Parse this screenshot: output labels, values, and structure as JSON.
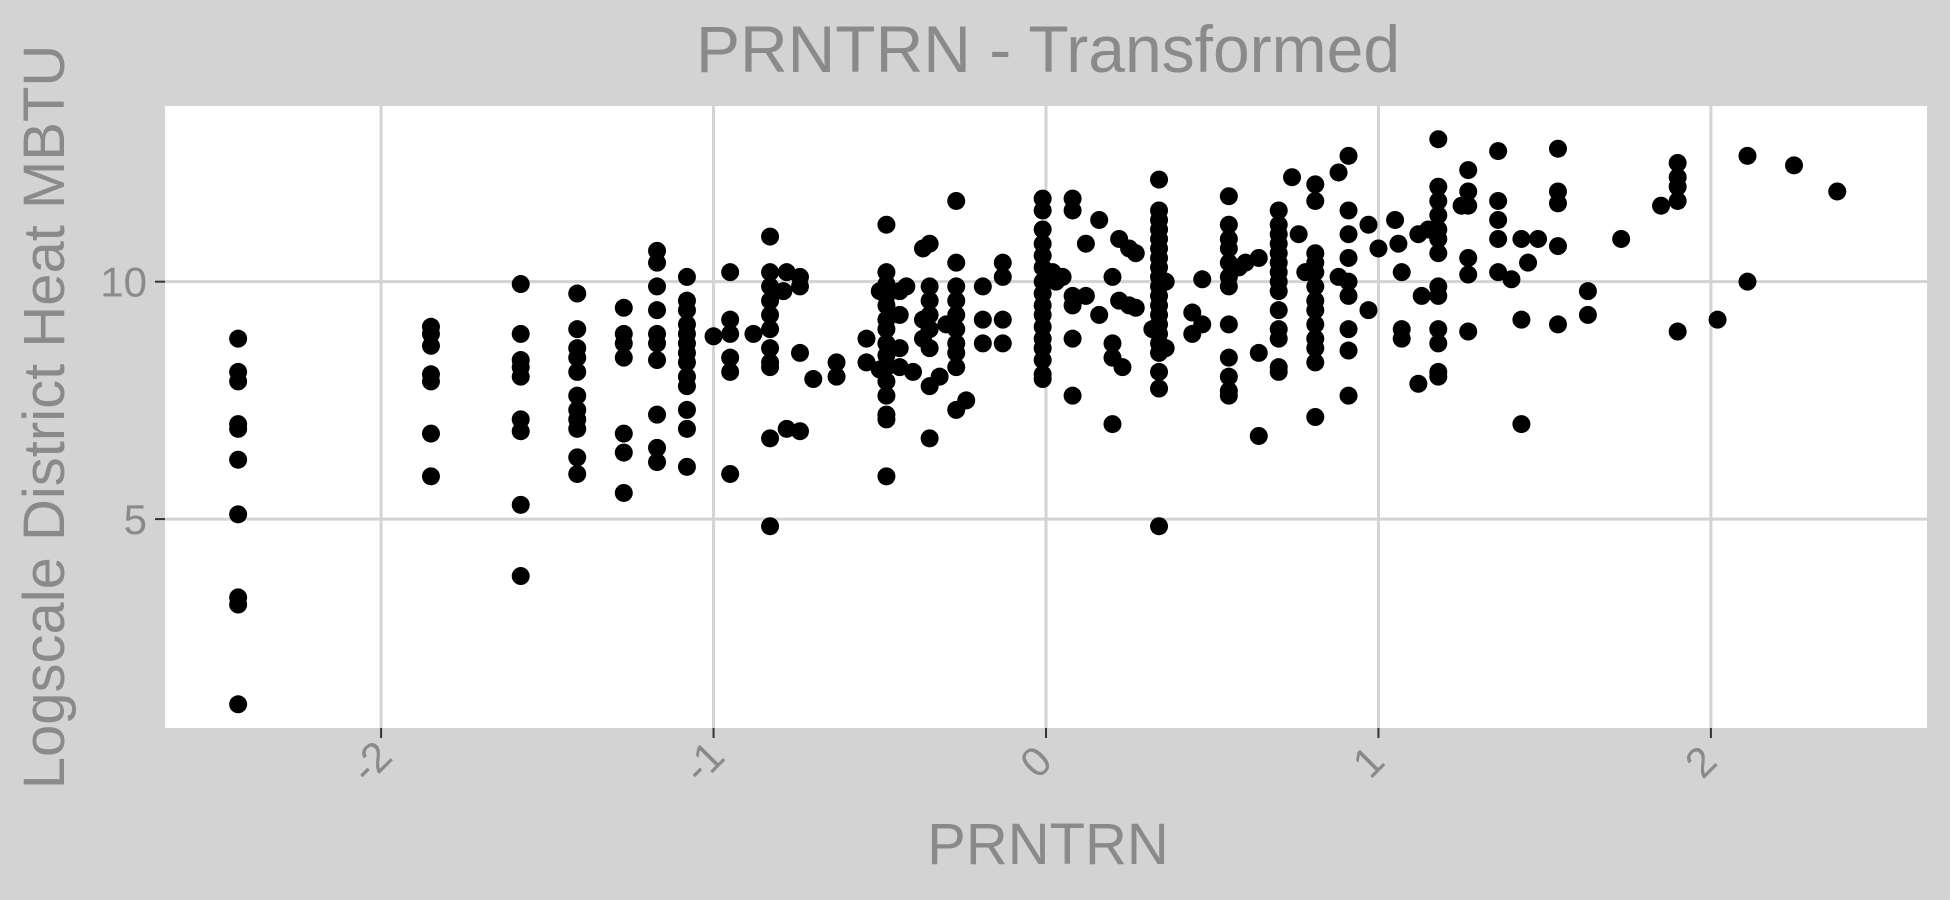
{
  "chart_data": {
    "type": "scatter",
    "title": "PRNTRN - Transformed",
    "xlabel": "PRNTRN",
    "ylabel": "Logscale District Heat MBTU",
    "xlim": [
      -2.65,
      2.65
    ],
    "ylim": [
      0.6,
      13.7
    ],
    "x_ticks": [
      -2,
      -1,
      0,
      1,
      2
    ],
    "x_tick_labels": [
      "-2",
      "-1",
      "0",
      "1",
      "2"
    ],
    "y_ticks": [
      5,
      10
    ],
    "y_tick_labels": [
      "5",
      "10"
    ],
    "grid": true,
    "legend": "none",
    "colors": {
      "background": "#d3d3d3",
      "panel": "#ffffff",
      "grid": "#d3d3d3",
      "points": "#000000",
      "text": "#8a8a8a"
    },
    "points": [
      [
        -2.43,
        8.8
      ],
      [
        -2.43,
        8.1
      ],
      [
        -2.43,
        7.9
      ],
      [
        -2.43,
        7.0
      ],
      [
        -2.43,
        6.9
      ],
      [
        -2.43,
        6.25
      ],
      [
        -2.43,
        5.1
      ],
      [
        -2.43,
        3.35
      ],
      [
        -2.43,
        3.2
      ],
      [
        -2.43,
        1.1
      ],
      [
        -1.85,
        9.05
      ],
      [
        -1.85,
        8.9
      ],
      [
        -1.85,
        8.65
      ],
      [
        -1.85,
        8.05
      ],
      [
        -1.85,
        7.9
      ],
      [
        -1.85,
        6.8
      ],
      [
        -1.85,
        5.9
      ],
      [
        -1.58,
        9.95
      ],
      [
        -1.58,
        8.9
      ],
      [
        -1.58,
        8.35
      ],
      [
        -1.58,
        8.2
      ],
      [
        -1.58,
        8.0
      ],
      [
        -1.58,
        7.1
      ],
      [
        -1.58,
        6.85
      ],
      [
        -1.58,
        5.3
      ],
      [
        -1.58,
        3.8
      ],
      [
        -1.41,
        9.75
      ],
      [
        -1.41,
        9.0
      ],
      [
        -1.41,
        8.6
      ],
      [
        -1.41,
        8.4
      ],
      [
        -1.41,
        8.1
      ],
      [
        -1.41,
        7.6
      ],
      [
        -1.41,
        7.3
      ],
      [
        -1.41,
        7.1
      ],
      [
        -1.41,
        6.9
      ],
      [
        -1.41,
        6.3
      ],
      [
        -1.41,
        5.95
      ],
      [
        -1.27,
        9.45
      ],
      [
        -1.27,
        8.9
      ],
      [
        -1.27,
        8.7
      ],
      [
        -1.27,
        8.4
      ],
      [
        -1.27,
        6.8
      ],
      [
        -1.27,
        6.4
      ],
      [
        -1.27,
        5.55
      ],
      [
        -1.17,
        10.65
      ],
      [
        -1.17,
        10.4
      ],
      [
        -1.17,
        9.9
      ],
      [
        -1.17,
        9.4
      ],
      [
        -1.17,
        8.9
      ],
      [
        -1.17,
        8.7
      ],
      [
        -1.17,
        8.35
      ],
      [
        -1.17,
        7.2
      ],
      [
        -1.17,
        6.5
      ],
      [
        -1.17,
        6.2
      ],
      [
        -1.08,
        10.1
      ],
      [
        -1.08,
        9.6
      ],
      [
        -1.08,
        9.4
      ],
      [
        -1.08,
        9.1
      ],
      [
        -1.08,
        8.9
      ],
      [
        -1.08,
        8.7
      ],
      [
        -1.08,
        8.5
      ],
      [
        -1.08,
        8.3
      ],
      [
        -1.08,
        8.0
      ],
      [
        -1.08,
        7.8
      ],
      [
        -1.08,
        7.3
      ],
      [
        -1.08,
        6.9
      ],
      [
        -1.08,
        6.1
      ],
      [
        -1.0,
        8.85
      ],
      [
        -0.95,
        10.2
      ],
      [
        -0.95,
        9.2
      ],
      [
        -0.95,
        8.9
      ],
      [
        -0.95,
        8.4
      ],
      [
        -0.95,
        8.1
      ],
      [
        -0.95,
        5.95
      ],
      [
        -0.88,
        8.9
      ],
      [
        -0.83,
        10.95
      ],
      [
        -0.83,
        10.2
      ],
      [
        -0.83,
        9.9
      ],
      [
        -0.83,
        9.6
      ],
      [
        -0.83,
        9.3
      ],
      [
        -0.83,
        9.0
      ],
      [
        -0.83,
        8.6
      ],
      [
        -0.83,
        8.3
      ],
      [
        -0.83,
        8.2
      ],
      [
        -0.83,
        6.7
      ],
      [
        -0.83,
        4.85
      ],
      [
        -0.79,
        9.8
      ],
      [
        -0.78,
        10.2
      ],
      [
        -0.78,
        6.9
      ],
      [
        -0.74,
        10.1
      ],
      [
        -0.74,
        9.9
      ],
      [
        -0.74,
        8.5
      ],
      [
        -0.74,
        6.85
      ],
      [
        -0.7,
        7.95
      ],
      [
        -0.63,
        8.3
      ],
      [
        -0.63,
        8.0
      ],
      [
        -0.54,
        8.8
      ],
      [
        -0.54,
        8.3
      ],
      [
        -0.5,
        9.8
      ],
      [
        -0.5,
        8.15
      ],
      [
        -0.48,
        11.2
      ],
      [
        -0.48,
        10.2
      ],
      [
        -0.48,
        9.95
      ],
      [
        -0.48,
        9.7
      ],
      [
        -0.48,
        9.5
      ],
      [
        -0.48,
        9.2
      ],
      [
        -0.48,
        9.0
      ],
      [
        -0.48,
        8.7
      ],
      [
        -0.48,
        8.45
      ],
      [
        -0.48,
        8.2
      ],
      [
        -0.48,
        7.9
      ],
      [
        -0.48,
        7.6
      ],
      [
        -0.48,
        7.2
      ],
      [
        -0.48,
        7.1
      ],
      [
        -0.48,
        5.9
      ],
      [
        -0.44,
        9.8
      ],
      [
        -0.44,
        9.3
      ],
      [
        -0.44,
        8.6
      ],
      [
        -0.44,
        8.2
      ],
      [
        -0.42,
        9.9
      ],
      [
        -0.4,
        8.1
      ],
      [
        -0.37,
        10.7
      ],
      [
        -0.37,
        9.2
      ],
      [
        -0.37,
        8.8
      ],
      [
        -0.35,
        10.8
      ],
      [
        -0.35,
        9.9
      ],
      [
        -0.35,
        9.6
      ],
      [
        -0.35,
        9.3
      ],
      [
        -0.35,
        9.0
      ],
      [
        -0.35,
        8.6
      ],
      [
        -0.35,
        7.8
      ],
      [
        -0.35,
        6.7
      ],
      [
        -0.32,
        8.0
      ],
      [
        -0.3,
        9.1
      ],
      [
        -0.27,
        11.7
      ],
      [
        -0.27,
        10.4
      ],
      [
        -0.27,
        9.9
      ],
      [
        -0.27,
        9.6
      ],
      [
        -0.27,
        9.3
      ],
      [
        -0.27,
        9.0
      ],
      [
        -0.27,
        8.7
      ],
      [
        -0.27,
        8.5
      ],
      [
        -0.27,
        8.2
      ],
      [
        -0.27,
        7.3
      ],
      [
        -0.24,
        7.5
      ],
      [
        -0.19,
        9.9
      ],
      [
        -0.19,
        9.2
      ],
      [
        -0.19,
        8.7
      ],
      [
        -0.13,
        10.4
      ],
      [
        -0.13,
        10.1
      ],
      [
        -0.13,
        9.2
      ],
      [
        -0.13,
        8.7
      ],
      [
        -0.01,
        11.75
      ],
      [
        -0.01,
        11.5
      ],
      [
        -0.01,
        11.1
      ],
      [
        -0.01,
        10.8
      ],
      [
        -0.01,
        10.55
      ],
      [
        -0.01,
        10.3
      ],
      [
        -0.01,
        10.0
      ],
      [
        -0.01,
        9.75
      ],
      [
        -0.01,
        9.5
      ],
      [
        -0.01,
        9.3
      ],
      [
        -0.01,
        9.05
      ],
      [
        -0.01,
        8.8
      ],
      [
        -0.01,
        8.6
      ],
      [
        -0.01,
        8.35
      ],
      [
        -0.01,
        8.05
      ],
      [
        -0.01,
        7.95
      ],
      [
        0.02,
        10.2
      ],
      [
        0.03,
        10.0
      ],
      [
        0.05,
        10.1
      ],
      [
        0.08,
        9.7
      ],
      [
        0.08,
        9.5
      ],
      [
        0.08,
        8.8
      ],
      [
        0.08,
        7.6
      ],
      [
        0.08,
        11.75
      ],
      [
        0.08,
        11.5
      ],
      [
        0.12,
        9.7
      ],
      [
        0.12,
        10.8
      ],
      [
        0.16,
        9.3
      ],
      [
        0.16,
        11.3
      ],
      [
        0.2,
        10.1
      ],
      [
        0.2,
        8.7
      ],
      [
        0.2,
        8.4
      ],
      [
        0.2,
        7.0
      ],
      [
        0.22,
        9.6
      ],
      [
        0.22,
        10.9
      ],
      [
        0.23,
        8.2
      ],
      [
        0.25,
        10.7
      ],
      [
        0.25,
        9.5
      ],
      [
        0.27,
        10.6
      ],
      [
        0.27,
        9.45
      ],
      [
        0.34,
        12.15
      ],
      [
        0.34,
        11.5
      ],
      [
        0.34,
        11.3
      ],
      [
        0.34,
        11.1
      ],
      [
        0.34,
        10.9
      ],
      [
        0.34,
        10.7
      ],
      [
        0.34,
        10.5
      ],
      [
        0.34,
        10.3
      ],
      [
        0.34,
        10.1
      ],
      [
        0.34,
        9.9
      ],
      [
        0.34,
        9.7
      ],
      [
        0.34,
        9.5
      ],
      [
        0.34,
        9.3
      ],
      [
        0.34,
        9.1
      ],
      [
        0.34,
        8.9
      ],
      [
        0.34,
        8.7
      ],
      [
        0.34,
        8.5
      ],
      [
        0.34,
        8.1
      ],
      [
        0.34,
        7.75
      ],
      [
        0.34,
        4.85
      ],
      [
        0.32,
        9.0
      ],
      [
        0.36,
        10.0
      ],
      [
        0.36,
        8.6
      ],
      [
        0.44,
        9.35
      ],
      [
        0.47,
        10.05
      ],
      [
        0.47,
        9.1
      ],
      [
        0.44,
        8.9
      ],
      [
        0.55,
        11.8
      ],
      [
        0.55,
        11.2
      ],
      [
        0.55,
        10.9
      ],
      [
        0.55,
        10.7
      ],
      [
        0.55,
        10.4
      ],
      [
        0.55,
        10.1
      ],
      [
        0.55,
        9.9
      ],
      [
        0.55,
        9.1
      ],
      [
        0.55,
        8.4
      ],
      [
        0.55,
        8.0
      ],
      [
        0.55,
        7.7
      ],
      [
        0.55,
        7.6
      ],
      [
        0.58,
        10.3
      ],
      [
        0.6,
        10.4
      ],
      [
        0.64,
        10.5
      ],
      [
        0.64,
        8.5
      ],
      [
        0.64,
        6.75
      ],
      [
        0.7,
        11.5
      ],
      [
        0.7,
        11.2
      ],
      [
        0.7,
        11.0
      ],
      [
        0.7,
        10.8
      ],
      [
        0.7,
        10.6
      ],
      [
        0.7,
        10.4
      ],
      [
        0.7,
        10.2
      ],
      [
        0.7,
        10.0
      ],
      [
        0.7,
        9.8
      ],
      [
        0.7,
        9.4
      ],
      [
        0.7,
        9.0
      ],
      [
        0.7,
        8.8
      ],
      [
        0.7,
        8.2
      ],
      [
        0.7,
        8.1
      ],
      [
        0.74,
        12.2
      ],
      [
        0.76,
        11.0
      ],
      [
        0.78,
        10.2
      ],
      [
        0.81,
        12.05
      ],
      [
        0.81,
        11.7
      ],
      [
        0.81,
        10.6
      ],
      [
        0.81,
        10.4
      ],
      [
        0.81,
        10.2
      ],
      [
        0.81,
        9.9
      ],
      [
        0.81,
        9.6
      ],
      [
        0.81,
        9.4
      ],
      [
        0.81,
        9.1
      ],
      [
        0.81,
        8.8
      ],
      [
        0.81,
        8.6
      ],
      [
        0.81,
        8.3
      ],
      [
        0.81,
        7.15
      ],
      [
        0.88,
        12.3
      ],
      [
        0.88,
        10.1
      ],
      [
        0.91,
        12.65
      ],
      [
        0.91,
        11.5
      ],
      [
        0.91,
        11.0
      ],
      [
        0.91,
        10.5
      ],
      [
        0.91,
        10.0
      ],
      [
        0.91,
        9.7
      ],
      [
        0.91,
        9.0
      ],
      [
        0.91,
        8.55
      ],
      [
        0.91,
        7.6
      ],
      [
        0.97,
        11.2
      ],
      [
        0.97,
        9.4
      ],
      [
        1.0,
        10.7
      ],
      [
        1.05,
        11.3
      ],
      [
        1.06,
        10.8
      ],
      [
        1.07,
        10.2
      ],
      [
        1.07,
        9.0
      ],
      [
        1.07,
        8.8
      ],
      [
        1.12,
        11.0
      ],
      [
        1.12,
        7.85
      ],
      [
        1.13,
        9.7
      ],
      [
        1.15,
        11.1
      ],
      [
        1.18,
        13.0
      ],
      [
        1.18,
        12.0
      ],
      [
        1.18,
        11.7
      ],
      [
        1.18,
        11.4
      ],
      [
        1.18,
        11.1
      ],
      [
        1.18,
        10.9
      ],
      [
        1.18,
        10.6
      ],
      [
        1.18,
        9.9
      ],
      [
        1.18,
        9.7
      ],
      [
        1.18,
        9.0
      ],
      [
        1.18,
        8.7
      ],
      [
        1.18,
        8.1
      ],
      [
        1.18,
        8.0
      ],
      [
        1.25,
        11.6
      ],
      [
        1.27,
        12.35
      ],
      [
        1.27,
        11.9
      ],
      [
        1.27,
        11.6
      ],
      [
        1.27,
        10.5
      ],
      [
        1.27,
        10.15
      ],
      [
        1.27,
        8.95
      ],
      [
        1.36,
        12.75
      ],
      [
        1.36,
        11.7
      ],
      [
        1.36,
        11.3
      ],
      [
        1.36,
        10.9
      ],
      [
        1.36,
        10.2
      ],
      [
        1.4,
        10.05
      ],
      [
        1.43,
        10.9
      ],
      [
        1.43,
        9.2
      ],
      [
        1.43,
        7.0
      ],
      [
        1.45,
        10.4
      ],
      [
        1.48,
        10.9
      ],
      [
        1.54,
        12.8
      ],
      [
        1.54,
        11.9
      ],
      [
        1.54,
        11.65
      ],
      [
        1.54,
        10.75
      ],
      [
        1.54,
        9.1
      ],
      [
        1.63,
        9.8
      ],
      [
        1.63,
        9.3
      ],
      [
        1.73,
        10.9
      ],
      [
        1.85,
        11.6
      ],
      [
        1.9,
        12.5
      ],
      [
        1.9,
        12.2
      ],
      [
        1.9,
        12.0
      ],
      [
        1.9,
        11.7
      ],
      [
        1.9,
        8.95
      ],
      [
        2.02,
        9.2
      ],
      [
        2.11,
        12.65
      ],
      [
        2.11,
        10.0
      ],
      [
        2.25,
        12.45
      ],
      [
        2.38,
        11.9
      ]
    ]
  }
}
